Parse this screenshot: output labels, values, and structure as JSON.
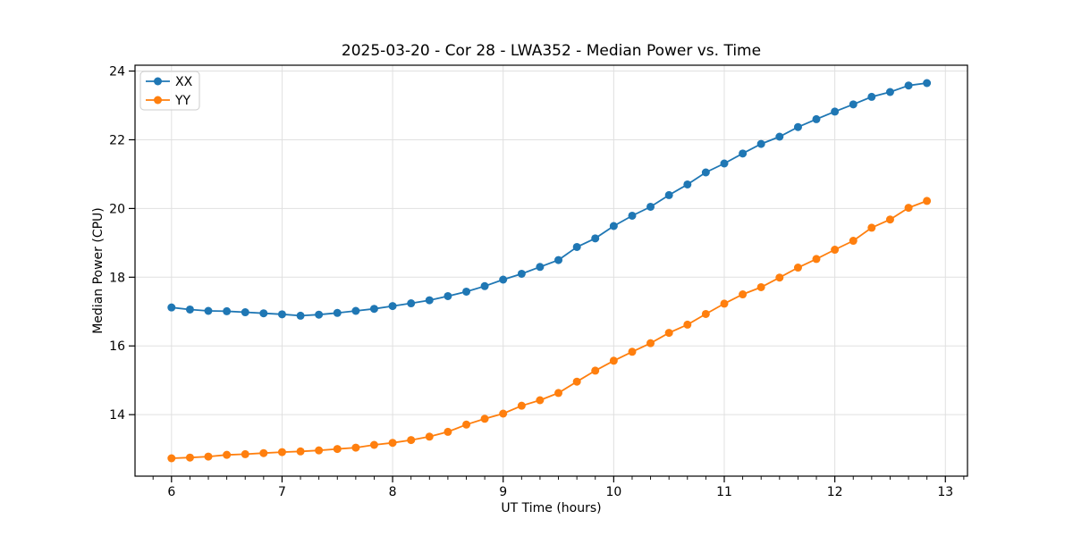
{
  "chart_data": {
    "type": "line",
    "title": "2025-03-20 - Cor 28 - LWA352 - Median Power vs. Time",
    "xlabel": "UT Time (hours)",
    "ylabel": "Median Power (CPU)",
    "xlim": [
      5.67,
      13.2
    ],
    "ylim": [
      12.21,
      24.17
    ],
    "x_major_ticks": [
      6,
      7,
      8,
      9,
      10,
      11,
      12,
      13
    ],
    "y_major_ticks": [
      14,
      16,
      18,
      20,
      22,
      24
    ],
    "x_minor_ticks_per_interval": 5,
    "grid": true,
    "grid_color": "#e0e0e0",
    "axis_color": "#000000",
    "background_color": "#ffffff",
    "legend": {
      "position": "upper-left",
      "entries": [
        "XX",
        "YY"
      ]
    },
    "x": [
      6.0,
      6.167,
      6.333,
      6.5,
      6.667,
      6.833,
      7.0,
      7.167,
      7.333,
      7.5,
      7.667,
      7.833,
      8.0,
      8.167,
      8.333,
      8.5,
      8.667,
      8.833,
      9.0,
      9.167,
      9.333,
      9.5,
      9.667,
      9.833,
      10.0,
      10.167,
      10.333,
      10.5,
      10.667,
      10.833,
      11.0,
      11.167,
      11.333,
      11.5,
      11.667,
      11.833,
      12.0,
      12.167,
      12.333,
      12.5,
      12.667,
      12.833
    ],
    "series": [
      {
        "name": "XX",
        "color": "#1f77b4",
        "y": [
          17.12,
          17.06,
          17.02,
          17.01,
          16.98,
          16.95,
          16.92,
          16.88,
          16.91,
          16.96,
          17.02,
          17.08,
          17.16,
          17.24,
          17.33,
          17.45,
          17.58,
          17.74,
          17.93,
          18.1,
          18.3,
          18.5,
          18.88,
          19.13,
          19.49,
          19.79,
          20.05,
          20.39,
          20.7,
          21.05,
          21.31,
          21.6,
          21.88,
          22.09,
          22.37,
          22.6,
          22.82,
          23.03,
          23.25,
          23.39,
          23.58,
          23.65
        ]
      },
      {
        "name": "YY",
        "color": "#ff7f0e",
        "y": [
          12.73,
          12.75,
          12.78,
          12.83,
          12.85,
          12.88,
          12.91,
          12.93,
          12.96,
          13.0,
          13.04,
          13.12,
          13.18,
          13.26,
          13.36,
          13.5,
          13.71,
          13.88,
          14.03,
          14.26,
          14.42,
          14.63,
          14.96,
          15.28,
          15.57,
          15.83,
          16.08,
          16.38,
          16.62,
          16.93,
          17.23,
          17.5,
          17.71,
          17.99,
          18.28,
          18.53,
          18.8,
          19.06,
          19.44,
          19.68,
          20.02,
          20.22
        ]
      }
    ]
  }
}
